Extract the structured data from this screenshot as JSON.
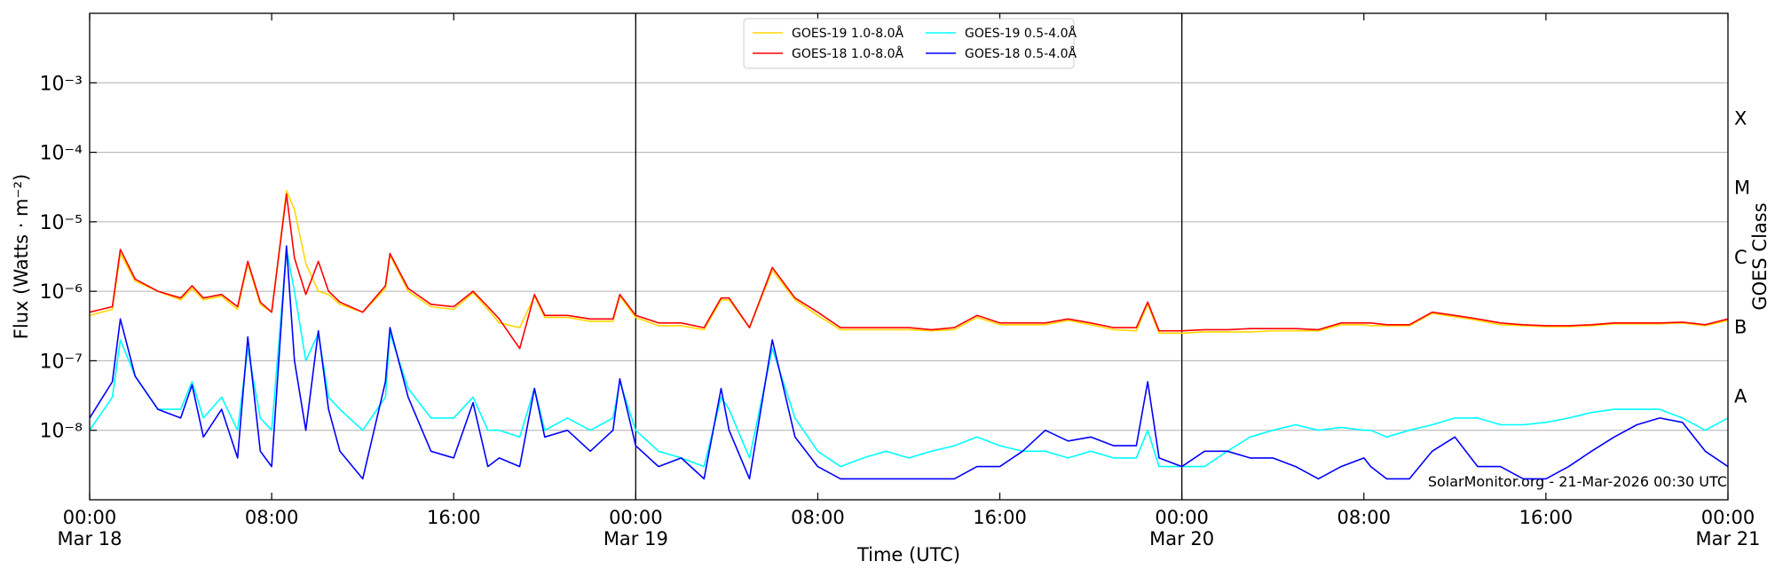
{
  "chart_data": {
    "type": "line",
    "x_label": "Time (UTC)",
    "y_label": "Flux (Watts · m⁻²)",
    "y2_label": "GOES Class",
    "annotation": "SolarMonitor.org - 21-Mar-2026 00:30 UTC",
    "log_y": true,
    "grid": true,
    "legend": "upper center",
    "xlim": [
      "Mar 18 00:00",
      "Mar 21 00:00"
    ],
    "xticks": [
      {
        "value": "Mar 18 00:00",
        "label": "00:00\nMar 18"
      },
      {
        "value": "Mar 18 08:00",
        "label": "08:00"
      },
      {
        "value": "Mar 18 16:00",
        "label": "16:00"
      },
      {
        "value": "Mar 19 00:00",
        "label": "00:00\nMar 19"
      },
      {
        "value": "Mar 19 08:00",
        "label": "08:00"
      },
      {
        "value": "Mar 19 16:00",
        "label": "16:00"
      },
      {
        "value": "Mar 20 00:00",
        "label": "00:00\nMar 20"
      },
      {
        "value": "Mar 20 08:00",
        "label": "08:00"
      },
      {
        "value": "Mar 20 16:00",
        "label": "16:00"
      },
      {
        "value": "Mar 21 00:00",
        "label": "00:00\nMar 21"
      }
    ],
    "vlines": [
      "Mar 19 00:00",
      "Mar 20 00:00"
    ],
    "ylim": [
      1e-09,
      0.01
    ],
    "yticks": [
      {
        "value": 1e-08,
        "label": "10⁻⁸"
      },
      {
        "value": 1e-07,
        "label": "10⁻⁷"
      },
      {
        "value": 1e-06,
        "label": "10⁻⁶"
      },
      {
        "value": 1e-05,
        "label": "10⁻⁵"
      },
      {
        "value": 0.0001,
        "label": "10⁻⁴"
      },
      {
        "value": 0.001,
        "label": "10⁻³"
      }
    ],
    "class_labels": [
      {
        "value": 1e-08,
        "label": "A"
      },
      {
        "value": 1e-07,
        "label": "B"
      },
      {
        "value": 1e-06,
        "label": "C"
      },
      {
        "value": 1e-05,
        "label": "M"
      },
      {
        "value": 0.0001,
        "label": "X"
      }
    ],
    "x": [
      "Mar 18 00:00",
      "Mar 18 01:00",
      "Mar 18 01:21",
      "Mar 18 02:00",
      "Mar 18 03:00",
      "Mar 18 04:00",
      "Mar 18 04:30",
      "Mar 18 05:00",
      "Mar 18 05:48",
      "Mar 18 06:30",
      "Mar 18 06:57",
      "Mar 18 07:30",
      "Mar 18 08:00",
      "Mar 18 08:39",
      "Mar 18 09:00",
      "Mar 18 09:30",
      "Mar 18 10:03",
      "Mar 18 10:30",
      "Mar 18 11:00",
      "Mar 18 12:00",
      "Mar 18 13:00",
      "Mar 18 13:12",
      "Mar 18 14:00",
      "Mar 18 15:00",
      "Mar 18 16:00",
      "Mar 18 16:51",
      "Mar 18 17:30",
      "Mar 18 18:00",
      "Mar 18 18:54",
      "Mar 18 19:33",
      "Mar 18 20:00",
      "Mar 18 21:00",
      "Mar 18 22:00",
      "Mar 18 23:00",
      "Mar 18 23:18",
      "Mar 19 00:00",
      "Mar 19 01:00",
      "Mar 19 02:00",
      "Mar 19 03:00",
      "Mar 19 03:45",
      "Mar 19 04:06",
      "Mar 19 05:00",
      "Mar 19 06:00",
      "Mar 19 07:00",
      "Mar 19 08:00",
      "Mar 19 09:00",
      "Mar 19 10:00",
      "Mar 19 11:00",
      "Mar 19 12:00",
      "Mar 19 13:00",
      "Mar 19 14:00",
      "Mar 19 15:00",
      "Mar 19 16:00",
      "Mar 19 17:00",
      "Mar 19 18:00",
      "Mar 19 19:00",
      "Mar 19 20:00",
      "Mar 19 21:00",
      "Mar 19 22:00",
      "Mar 19 22:30",
      "Mar 19 23:00",
      "Mar 20 00:00",
      "Mar 20 01:00",
      "Mar 20 02:00",
      "Mar 20 03:00",
      "Mar 20 04:00",
      "Mar 20 05:00",
      "Mar 20 06:00",
      "Mar 20 07:00",
      "Mar 20 08:00",
      "Mar 20 08:18",
      "Mar 20 09:00",
      "Mar 20 10:00",
      "Mar 20 11:00",
      "Mar 20 12:00",
      "Mar 20 13:00",
      "Mar 20 14:00",
      "Mar 20 15:00",
      "Mar 20 16:00",
      "Mar 20 17:00",
      "Mar 20 18:00",
      "Mar 20 19:00",
      "Mar 20 20:00",
      "Mar 20 21:00",
      "Mar 20 22:00",
      "Mar 20 23:00",
      "Mar 21 00:00"
    ],
    "series": [
      {
        "name": "GOES-19 1.0-8.0Å",
        "color": "#ffd700",
        "values": [
          4.5e-07,
          5.5e-07,
          3.5e-06,
          1.4e-06,
          1e-06,
          7.5e-07,
          1.1e-06,
          7.5e-07,
          8.5e-07,
          5.5e-07,
          2.5e-06,
          6.5e-07,
          5e-07,
          2.8e-05,
          1.5e-05,
          2.5e-06,
          1e-06,
          9e-07,
          6.5e-07,
          5e-07,
          1.1e-06,
          3.3e-06,
          1e-06,
          6e-07,
          5.5e-07,
          9.5e-07,
          5.5e-07,
          3.5e-07,
          3e-07,
          8.5e-07,
          4.2e-07,
          4.2e-07,
          3.7e-07,
          3.7e-07,
          8.5e-07,
          4.2e-07,
          3.2e-07,
          3.2e-07,
          2.8e-07,
          7.5e-07,
          7.5e-07,
          3e-07,
          2e-06,
          7.5e-07,
          4.5e-07,
          2.8e-07,
          2.8e-07,
          2.8e-07,
          2.8e-07,
          2.7e-07,
          2.8e-07,
          4.2e-07,
          3.3e-07,
          3.3e-07,
          3.3e-07,
          3.8e-07,
          3.3e-07,
          2.8e-07,
          2.7e-07,
          6.5e-07,
          2.5e-07,
          2.5e-07,
          2.6e-07,
          2.6e-07,
          2.6e-07,
          2.7e-07,
          2.7e-07,
          2.7e-07,
          3.3e-07,
          3.3e-07,
          3.2e-07,
          3.2e-07,
          3.2e-07,
          4.8e-07,
          4.3e-07,
          3.8e-07,
          3.3e-07,
          3.2e-07,
          3.1e-07,
          3.1e-07,
          3.2e-07,
          3.4e-07,
          3.4e-07,
          3.4e-07,
          3.5e-07,
          3.2e-07,
          3.8e-07
        ]
      },
      {
        "name": "GOES-18 1.0-8.0Å",
        "color": "#ff0000",
        "values": [
          5e-07,
          6e-07,
          4e-06,
          1.5e-06,
          1e-06,
          8e-07,
          1.2e-06,
          8e-07,
          9e-07,
          6e-07,
          2.7e-06,
          7e-07,
          5e-07,
          2.5e-05,
          3e-06,
          9e-07,
          2.7e-06,
          1e-06,
          7e-07,
          5e-07,
          1.2e-06,
          3.5e-06,
          1.1e-06,
          6.5e-07,
          6e-07,
          1e-06,
          6e-07,
          4e-07,
          1.5e-07,
          9e-07,
          4.5e-07,
          4.5e-07,
          4e-07,
          4e-07,
          9e-07,
          4.5e-07,
          3.5e-07,
          3.5e-07,
          3e-07,
          8e-07,
          8e-07,
          3e-07,
          2.2e-06,
          8e-07,
          5e-07,
          3e-07,
          3e-07,
          3e-07,
          3e-07,
          2.8e-07,
          3e-07,
          4.5e-07,
          3.5e-07,
          3.5e-07,
          3.5e-07,
          4e-07,
          3.5e-07,
          3e-07,
          3e-07,
          7e-07,
          2.7e-07,
          2.7e-07,
          2.8e-07,
          2.8e-07,
          2.9e-07,
          2.9e-07,
          2.9e-07,
          2.8e-07,
          3.5e-07,
          3.5e-07,
          3.5e-07,
          3.3e-07,
          3.3e-07,
          5e-07,
          4.5e-07,
          4e-07,
          3.5e-07,
          3.3e-07,
          3.2e-07,
          3.2e-07,
          3.3e-07,
          3.5e-07,
          3.5e-07,
          3.5e-07,
          3.6e-07,
          3.3e-07,
          4e-07
        ]
      },
      {
        "name": "GOES-19 0.5-4.0Å",
        "color": "#00ffff",
        "values": [
          1e-08,
          3e-08,
          2e-07,
          6e-08,
          2e-08,
          2e-08,
          5e-08,
          1.5e-08,
          3e-08,
          1e-08,
          1.5e-07,
          1.5e-08,
          1e-08,
          4e-06,
          1e-06,
          1e-07,
          2.5e-07,
          3e-08,
          2e-08,
          1e-08,
          3e-08,
          2.5e-07,
          4e-08,
          1.5e-08,
          1.5e-08,
          3e-08,
          1e-08,
          1e-08,
          8e-09,
          4e-08,
          1e-08,
          1.5e-08,
          1e-08,
          1.5e-08,
          5e-08,
          1e-08,
          5e-09,
          4e-09,
          3e-09,
          3e-08,
          2e-08,
          4e-09,
          1.5e-07,
          1.5e-08,
          5e-09,
          3e-09,
          4e-09,
          5e-09,
          4e-09,
          5e-09,
          6e-09,
          8e-09,
          6e-09,
          5e-09,
          5e-09,
          4e-09,
          5e-09,
          4e-09,
          4e-09,
          1e-08,
          3e-09,
          3e-09,
          3e-09,
          5e-09,
          8e-09,
          1e-08,
          1.2e-08,
          1e-08,
          1.1e-08,
          1e-08,
          1e-08,
          8e-09,
          1e-08,
          1.2e-08,
          1.5e-08,
          1.5e-08,
          1.2e-08,
          1.2e-08,
          1.3e-08,
          1.5e-08,
          1.8e-08,
          2e-08,
          2e-08,
          2e-08,
          1.5e-08,
          1e-08,
          1.5e-08
        ]
      },
      {
        "name": "GOES-18 0.5-4.0Å",
        "color": "#0000ff",
        "values": [
          1.5e-08,
          5e-08,
          4e-07,
          6e-08,
          2e-08,
          1.5e-08,
          4.5e-08,
          8e-09,
          2e-08,
          4e-09,
          2.2e-07,
          5e-09,
          3e-09,
          4.5e-06,
          1e-07,
          1e-08,
          2.7e-07,
          2e-08,
          5e-09,
          2e-09,
          5e-08,
          3e-07,
          3e-08,
          5e-09,
          4e-09,
          2.5e-08,
          3e-09,
          4e-09,
          3e-09,
          4e-08,
          8e-09,
          1e-08,
          5e-09,
          1e-08,
          5.5e-08,
          6e-09,
          3e-09,
          4e-09,
          2e-09,
          4e-08,
          1e-08,
          2e-09,
          2e-07,
          8e-09,
          3e-09,
          2e-09,
          2e-09,
          2e-09,
          2e-09,
          2e-09,
          2e-09,
          3e-09,
          3e-09,
          5e-09,
          1e-08,
          7e-09,
          8e-09,
          6e-09,
          6e-09,
          5e-08,
          4e-09,
          3e-09,
          5e-09,
          5e-09,
          4e-09,
          4e-09,
          3e-09,
          2e-09,
          3e-09,
          4e-09,
          3e-09,
          2e-09,
          2e-09,
          5e-09,
          8e-09,
          3e-09,
          3e-09,
          2e-09,
          2e-09,
          3e-09,
          5e-09,
          8e-09,
          1.2e-08,
          1.5e-08,
          1.3e-08,
          5e-09,
          3e-09
        ]
      }
    ]
  }
}
